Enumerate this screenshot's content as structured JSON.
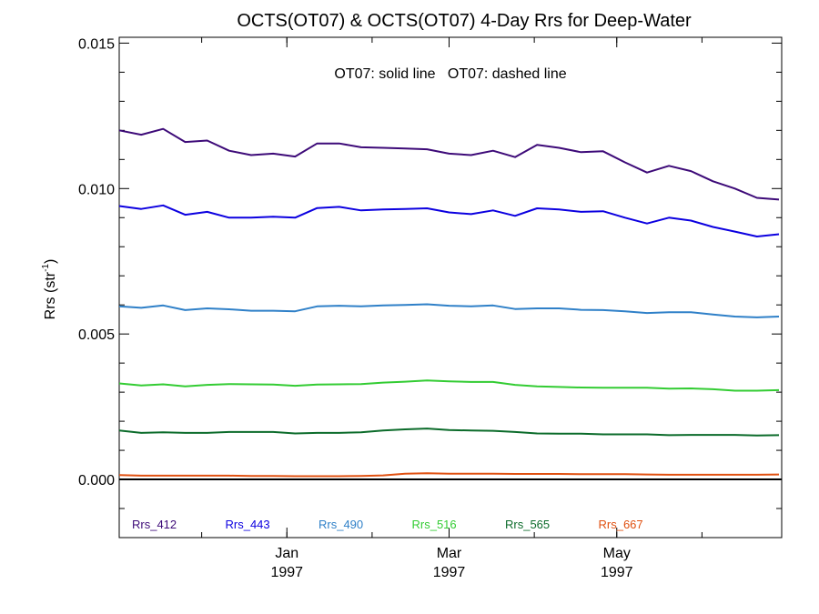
{
  "chart_data": {
    "type": "line",
    "title": "OCTS(OT07) & OCTS(OT07) 4-Day Rrs for Deep-Water",
    "subtitle": "OT07: solid line   OT07: dashed line",
    "ylabel_main": "Rrs (str",
    "ylabel_sup": "-1",
    "ylabel_close": ")",
    "ylim": [
      -0.002,
      0.0152
    ],
    "yticks": [
      {
        "value": 0.0,
        "label": "0.000"
      },
      {
        "value": 0.005,
        "label": "0.005"
      },
      {
        "value": 0.01,
        "label": "0.010"
      },
      {
        "value": 0.015,
        "label": "0.015"
      }
    ],
    "xlim": [
      "1996-11-01",
      "1997-06-30"
    ],
    "xticks": [
      {
        "date": "1997-01-01",
        "month": "Jan",
        "year": "1997"
      },
      {
        "date": "1997-03-01",
        "month": "Mar",
        "year": "1997"
      },
      {
        "date": "1997-05-01",
        "month": "May",
        "year": "1997"
      }
    ],
    "x": [
      "1996-11-01",
      "1996-11-09",
      "1996-11-17",
      "1996-11-25",
      "1996-12-03",
      "1996-12-11",
      "1996-12-19",
      "1996-12-27",
      "1997-01-04",
      "1997-01-12",
      "1997-01-20",
      "1997-01-28",
      "1997-02-05",
      "1997-02-13",
      "1997-02-21",
      "1997-03-01",
      "1997-03-09",
      "1997-03-17",
      "1997-03-25",
      "1997-04-02",
      "1997-04-10",
      "1997-04-18",
      "1997-04-26",
      "1997-05-04",
      "1997-05-12",
      "1997-05-20",
      "1997-05-28",
      "1997-06-05",
      "1997-06-13",
      "1997-06-21",
      "1997-06-29"
    ],
    "series": [
      {
        "name": "Rrs_412",
        "color": "#3d0a78",
        "values": [
          0.012,
          0.01185,
          0.01205,
          0.0116,
          0.01165,
          0.0113,
          0.01115,
          0.0112,
          0.0111,
          0.01155,
          0.01155,
          0.01142,
          0.0114,
          0.01138,
          0.01135,
          0.0112,
          0.01115,
          0.0113,
          0.01108,
          0.0115,
          0.0114,
          0.01125,
          0.01128,
          0.0109,
          0.01055,
          0.01078,
          0.0106,
          0.01025,
          0.01,
          0.00968,
          0.00962
        ]
      },
      {
        "name": "Rrs_443",
        "color": "#0c00e0",
        "values": [
          0.0094,
          0.0093,
          0.00942,
          0.0091,
          0.0092,
          0.009,
          0.009,
          0.00903,
          0.009,
          0.00933,
          0.00937,
          0.00925,
          0.00928,
          0.0093,
          0.00932,
          0.00918,
          0.00912,
          0.00925,
          0.00906,
          0.00932,
          0.00928,
          0.0092,
          0.00922,
          0.009,
          0.0088,
          0.009,
          0.0089,
          0.00868,
          0.00852,
          0.00835,
          0.00843
        ]
      },
      {
        "name": "Rrs_490",
        "color": "#2f80c8",
        "values": [
          0.00595,
          0.0059,
          0.00598,
          0.00582,
          0.00588,
          0.00585,
          0.0058,
          0.0058,
          0.00578,
          0.00595,
          0.00597,
          0.00595,
          0.00598,
          0.006,
          0.00602,
          0.00597,
          0.00595,
          0.00598,
          0.00586,
          0.00588,
          0.00588,
          0.00583,
          0.00582,
          0.00578,
          0.00572,
          0.00575,
          0.00575,
          0.00567,
          0.0056,
          0.00557,
          0.0056
        ]
      },
      {
        "name": "Rrs_516",
        "color": "#33cc33",
        "values": [
          0.0033,
          0.00323,
          0.00327,
          0.0032,
          0.00325,
          0.00328,
          0.00327,
          0.00326,
          0.00322,
          0.00326,
          0.00327,
          0.00328,
          0.00333,
          0.00336,
          0.0034,
          0.00337,
          0.00335,
          0.00335,
          0.00325,
          0.0032,
          0.00318,
          0.00316,
          0.00315,
          0.00315,
          0.00315,
          0.00312,
          0.00313,
          0.0031,
          0.00305,
          0.00305,
          0.00307
        ]
      },
      {
        "name": "Rrs_565",
        "color": "#0b6b2a",
        "values": [
          0.00168,
          0.0016,
          0.00162,
          0.0016,
          0.0016,
          0.00163,
          0.00163,
          0.00163,
          0.00158,
          0.0016,
          0.0016,
          0.00162,
          0.00168,
          0.00172,
          0.00175,
          0.0017,
          0.00168,
          0.00167,
          0.00163,
          0.00158,
          0.00157,
          0.00157,
          0.00155,
          0.00155,
          0.00155,
          0.00152,
          0.00153,
          0.00153,
          0.00153,
          0.00151,
          0.00152
        ]
      },
      {
        "name": "Rrs_667",
        "color": "#e05010",
        "values": [
          0.00015,
          0.00013,
          0.00013,
          0.00013,
          0.00013,
          0.00013,
          0.00012,
          0.00012,
          0.00011,
          0.00011,
          0.00011,
          0.00012,
          0.00014,
          0.0002,
          0.00021,
          0.0002,
          0.0002,
          0.0002,
          0.00019,
          0.00019,
          0.00019,
          0.00018,
          0.00018,
          0.00018,
          0.00017,
          0.00016,
          0.00016,
          0.00016,
          0.00016,
          0.00016,
          0.00017
        ]
      }
    ],
    "zero_line": true,
    "grid": false,
    "legend_position": "bottom-inside"
  }
}
